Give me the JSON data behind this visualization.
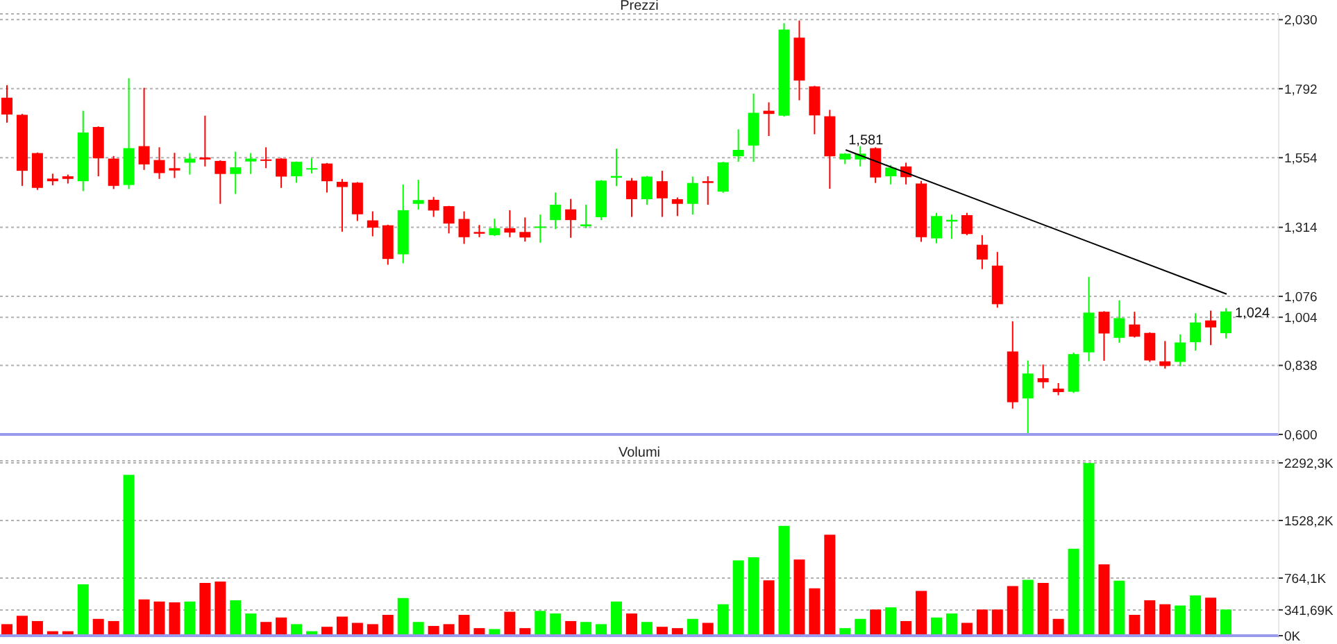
{
  "chart_data": [
    {
      "type": "candlestick",
      "title": "Prezzi",
      "tick_labels": "y",
      "grid": "y",
      "categories": [
        null,
        null,
        null,
        null,
        null,
        null,
        null,
        null,
        null,
        null,
        null,
        null,
        null,
        null,
        null,
        null,
        null,
        null,
        null,
        null,
        null,
        null,
        null,
        null,
        null,
        null,
        null,
        null,
        null,
        null,
        null,
        null,
        null,
        null,
        null,
        null,
        null,
        null,
        null,
        null,
        null,
        null,
        null,
        null,
        null,
        null,
        null,
        null,
        null,
        null,
        null,
        null,
        null,
        null,
        null,
        null,
        null,
        null,
        null,
        null,
        null,
        null,
        null,
        null,
        null,
        null,
        null,
        null,
        null,
        null,
        null,
        null,
        null,
        null,
        null,
        null,
        null,
        null,
        null,
        null,
        null
      ],
      "ohlc": [
        [
          1.761,
          1.804,
          1.675,
          1.703
        ],
        [
          1.702,
          1.705,
          1.457,
          1.509
        ],
        [
          1.57,
          1.572,
          1.443,
          1.45
        ],
        [
          1.482,
          1.499,
          1.459,
          1.473
        ],
        [
          1.49,
          1.496,
          1.465,
          1.481
        ],
        [
          1.473,
          1.716,
          1.439,
          1.641
        ],
        [
          1.66,
          1.662,
          1.49,
          1.552
        ],
        [
          1.551,
          1.56,
          1.446,
          1.457
        ],
        [
          1.46,
          1.828,
          1.446,
          1.587
        ],
        [
          1.594,
          1.795,
          1.512,
          1.531
        ],
        [
          1.546,
          1.59,
          1.481,
          1.501
        ],
        [
          1.518,
          1.571,
          1.484,
          1.51
        ],
        [
          1.537,
          1.57,
          1.496,
          1.551
        ],
        [
          1.555,
          1.699,
          1.524,
          1.548
        ],
        [
          1.543,
          1.545,
          1.395,
          1.498
        ],
        [
          1.498,
          1.575,
          1.429,
          1.521
        ],
        [
          1.541,
          1.57,
          1.498,
          1.551
        ],
        [
          1.548,
          1.59,
          1.518,
          1.545
        ],
        [
          1.551,
          1.553,
          1.45,
          1.489
        ],
        [
          1.49,
          1.541,
          1.468,
          1.54
        ],
        [
          1.514,
          1.552,
          1.5,
          1.518
        ],
        [
          1.534,
          1.536,
          1.434,
          1.473
        ],
        [
          1.471,
          1.481,
          1.299,
          1.453
        ],
        [
          1.468,
          1.47,
          1.336,
          1.359
        ],
        [
          1.338,
          1.369,
          1.283,
          1.313
        ],
        [
          1.321,
          1.323,
          1.185,
          1.205
        ],
        [
          1.221,
          1.462,
          1.19,
          1.373
        ],
        [
          1.395,
          1.478,
          1.375,
          1.408
        ],
        [
          1.409,
          1.419,
          1.35,
          1.372
        ],
        [
          1.387,
          1.388,
          1.293,
          1.327
        ],
        [
          1.343,
          1.369,
          1.257,
          1.28
        ],
        [
          1.298,
          1.322,
          1.28,
          1.292
        ],
        [
          1.287,
          1.344,
          1.284,
          1.311
        ],
        [
          1.311,
          1.373,
          1.28,
          1.296
        ],
        [
          1.298,
          1.348,
          1.265,
          1.279
        ],
        [
          1.312,
          1.358,
          1.261,
          1.317
        ],
        [
          1.339,
          1.434,
          1.308,
          1.392
        ],
        [
          1.376,
          1.412,
          1.278,
          1.339
        ],
        [
          1.318,
          1.392,
          1.311,
          1.324
        ],
        [
          1.349,
          1.477,
          1.339,
          1.475
        ],
        [
          1.485,
          1.585,
          1.456,
          1.491
        ],
        [
          1.475,
          1.484,
          1.35,
          1.411
        ],
        [
          1.411,
          1.491,
          1.392,
          1.489
        ],
        [
          1.473,
          1.509,
          1.35,
          1.414
        ],
        [
          1.411,
          1.417,
          1.353,
          1.395
        ],
        [
          1.395,
          1.489,
          1.358,
          1.467
        ],
        [
          1.473,
          1.49,
          1.392,
          1.467
        ],
        [
          1.437,
          1.54,
          1.433,
          1.538
        ],
        [
          1.559,
          1.652,
          1.54,
          1.581
        ],
        [
          1.596,
          1.775,
          1.54,
          1.709
        ],
        [
          1.716,
          1.745,
          1.629,
          1.705
        ],
        [
          1.699,
          2.018,
          1.696,
          1.996
        ],
        [
          1.968,
          2.027,
          1.752,
          1.82
        ],
        [
          1.8,
          1.802,
          1.635,
          1.7
        ],
        [
          1.697,
          1.719,
          1.447,
          1.559
        ],
        [
          1.548,
          1.57,
          1.532,
          1.568
        ],
        [
          1.548,
          1.594,
          1.524,
          1.568
        ],
        [
          1.587,
          1.59,
          1.467,
          1.486
        ],
        [
          1.49,
          1.529,
          1.462,
          1.52
        ],
        [
          1.524,
          1.537,
          1.462,
          1.487
        ],
        [
          1.465,
          1.474,
          1.264,
          1.28
        ],
        [
          1.276,
          1.364,
          1.259,
          1.353
        ],
        [
          1.334,
          1.358,
          1.274,
          1.34
        ],
        [
          1.356,
          1.364,
          1.287,
          1.291
        ],
        [
          1.254,
          1.287,
          1.17,
          1.203
        ],
        [
          1.182,
          1.229,
          1.037,
          1.049
        ],
        [
          0.886,
          0.99,
          0.689,
          0.711
        ],
        [
          0.724,
          0.855,
          0.605,
          0.81
        ],
        [
          0.794,
          0.841,
          0.759,
          0.78
        ],
        [
          0.758,
          0.777,
          0.735,
          0.746
        ],
        [
          0.747,
          0.882,
          0.743,
          0.877
        ],
        [
          0.883,
          1.143,
          0.852,
          1.02
        ],
        [
          1.023,
          1.025,
          0.854,
          0.948
        ],
        [
          0.933,
          1.062,
          0.916,
          1.001
        ],
        [
          0.979,
          1.023,
          0.934,
          0.937
        ],
        [
          0.95,
          0.952,
          0.85,
          0.855
        ],
        [
          0.852,
          0.922,
          0.827,
          0.836
        ],
        [
          0.85,
          0.945,
          0.835,
          0.917
        ],
        [
          0.918,
          1.018,
          0.889,
          0.986
        ],
        [
          0.993,
          1.027,
          0.908,
          0.969
        ],
        [
          0.949,
          1.035,
          0.931,
          1.024
        ]
      ],
      "colors": [
        "#ff0000",
        "#ff0000",
        "#ff0000",
        "#ff0000",
        "#ff0000",
        "#00ff00",
        "#ff0000",
        "#ff0000",
        "#00ff00",
        "#ff0000",
        "#ff0000",
        "#ff0000",
        "#00ff00",
        "#ff0000",
        "#ff0000",
        "#00ff00",
        "#00ff00",
        "#ff0000",
        "#ff0000",
        "#00ff00",
        "#00ff00",
        "#ff0000",
        "#ff0000",
        "#ff0000",
        "#ff0000",
        "#ff0000",
        "#00ff00",
        "#00ff00",
        "#ff0000",
        "#ff0000",
        "#ff0000",
        "#ff0000",
        "#00ff00",
        "#ff0000",
        "#ff0000",
        "#00ff00",
        "#00ff00",
        "#ff0000",
        "#00ff00",
        "#00ff00",
        "#00ff00",
        "#ff0000",
        "#00ff00",
        "#ff0000",
        "#ff0000",
        "#00ff00",
        "#ff0000",
        "#00ff00",
        "#00ff00",
        "#00ff00",
        "#ff0000",
        "#00ff00",
        "#ff0000",
        "#ff0000",
        "#ff0000",
        "#00ff00",
        "#00ff00",
        "#ff0000",
        "#00ff00",
        "#ff0000",
        "#ff0000",
        "#00ff00",
        "#00ff00",
        "#ff0000",
        "#ff0000",
        "#ff0000",
        "#ff0000",
        "#00ff00",
        "#ff0000",
        "#ff0000",
        "#00ff00",
        "#00ff00",
        "#ff0000",
        "#00ff00",
        "#ff0000",
        "#ff0000",
        "#ff0000",
        "#00ff00",
        "#00ff00",
        "#ff0000",
        "#00ff00"
      ],
      "value_labels": [
        null,
        null,
        null,
        null,
        null,
        null,
        null,
        null,
        null,
        null,
        null,
        null,
        null,
        null,
        null,
        null,
        null,
        null,
        null,
        null,
        null,
        null,
        null,
        null,
        null,
        null,
        null,
        null,
        null,
        null,
        null,
        null,
        null,
        null,
        null,
        null,
        null,
        null,
        null,
        null,
        null,
        null,
        null,
        null,
        null,
        null,
        null,
        null,
        null,
        null,
        null,
        null,
        null,
        null,
        null,
        null,
        null,
        null,
        null,
        null,
        null,
        null,
        null,
        null,
        null,
        null,
        null,
        null,
        null,
        null,
        null,
        null,
        null,
        null,
        null,
        null,
        null,
        null,
        null,
        null,
        "1,024"
      ],
      "series": [
        {
          "type": "line",
          "color": "#000000",
          "values": [
            null,
            null,
            null,
            null,
            null,
            null,
            null,
            null,
            null,
            null,
            null,
            null,
            null,
            null,
            null,
            null,
            null,
            null,
            null,
            null,
            null,
            null,
            null,
            null,
            null,
            null,
            null,
            null,
            null,
            null,
            null,
            null,
            null,
            null,
            null,
            null,
            null,
            null,
            null,
            null,
            null,
            null,
            null,
            null,
            null,
            null,
            null,
            null,
            null,
            null,
            null,
            null,
            null,
            null,
            null,
            1.581,
            null,
            null,
            null,
            null,
            null,
            null,
            null,
            null,
            null,
            null,
            null,
            null,
            null,
            null,
            null,
            null,
            null,
            null,
            null,
            null,
            null,
            null,
            null,
            null,
            1.084
          ],
          "value_labels": [
            null,
            null,
            null,
            null,
            null,
            null,
            null,
            null,
            null,
            null,
            null,
            null,
            null,
            null,
            null,
            null,
            null,
            null,
            null,
            null,
            null,
            null,
            null,
            null,
            null,
            null,
            null,
            null,
            null,
            null,
            null,
            null,
            null,
            null,
            null,
            null,
            null,
            null,
            null,
            null,
            null,
            null,
            null,
            null,
            null,
            null,
            null,
            null,
            null,
            null,
            null,
            null,
            null,
            null,
            null,
            "1,581",
            null,
            null,
            null,
            null,
            null,
            null,
            null,
            null,
            null,
            null,
            null,
            null,
            null,
            null,
            null,
            null,
            null,
            null,
            null,
            null,
            null,
            null,
            null,
            null,
            null
          ]
        }
      ],
      "ylim": [
        0.6,
        2.05
      ],
      "yticks": [
        {
          "value": 0.6,
          "label": "0,600"
        },
        {
          "value": 0.838,
          "label": "0,838"
        },
        {
          "value": 1.004,
          "label": "1,004"
        },
        {
          "value": 1.076,
          "label": "1,076"
        },
        {
          "value": 1.314,
          "label": "1,314"
        },
        {
          "value": 1.554,
          "label": "1,554"
        },
        {
          "value": 1.792,
          "label": "1,792"
        },
        {
          "value": 2.03,
          "label": "2,030"
        }
      ]
    },
    {
      "type": "bar",
      "title": "Volumi",
      "tick_labels": "y",
      "grid": "y",
      "categories": [
        null,
        null,
        null,
        null,
        null,
        null,
        null,
        null,
        null,
        null,
        null,
        null,
        null,
        null,
        null,
        null,
        null,
        null,
        null,
        null,
        null,
        null,
        null,
        null,
        null,
        null,
        null,
        null,
        null,
        null,
        null,
        null,
        null,
        null,
        null,
        null,
        null,
        null,
        null,
        null,
        null,
        null,
        null,
        null,
        null,
        null,
        null,
        null,
        null,
        null,
        null,
        null,
        null,
        null,
        null,
        null,
        null,
        null,
        null,
        null,
        null,
        null,
        null,
        null,
        null,
        null,
        null,
        null,
        null,
        null,
        null,
        null,
        null,
        null,
        null,
        null,
        null,
        null,
        null,
        null,
        null
      ],
      "values": [
        153,
        264,
        194,
        59,
        59,
        682,
        223,
        194,
        2133,
        482,
        453,
        441,
        453,
        699,
        717,
        470,
        294,
        182,
        241,
        153,
        59,
        118,
        253,
        170,
        153,
        276,
        500,
        182,
        129,
        153,
        276,
        100,
        88,
        317,
        100,
        329,
        294,
        194,
        182,
        153,
        453,
        294,
        182,
        118,
        100,
        223,
        170,
        417,
        999,
        1040,
        735,
        1457,
        1011,
        629,
        1340,
        100,
        223,
        347,
        376,
        194,
        594,
        241,
        294,
        170,
        347,
        347,
        658,
        740,
        699,
        223,
        1152,
        2290,
        946,
        729,
        276,
        470,
        417,
        400,
        535,
        505,
        347
      ],
      "colors": [
        "#ff0000",
        "#ff0000",
        "#ff0000",
        "#ff0000",
        "#ff0000",
        "#00ff00",
        "#ff0000",
        "#ff0000",
        "#00ff00",
        "#ff0000",
        "#ff0000",
        "#ff0000",
        "#00ff00",
        "#ff0000",
        "#ff0000",
        "#00ff00",
        "#00ff00",
        "#ff0000",
        "#ff0000",
        "#00ff00",
        "#00ff00",
        "#ff0000",
        "#ff0000",
        "#ff0000",
        "#ff0000",
        "#ff0000",
        "#00ff00",
        "#00ff00",
        "#ff0000",
        "#ff0000",
        "#ff0000",
        "#ff0000",
        "#00ff00",
        "#ff0000",
        "#ff0000",
        "#00ff00",
        "#00ff00",
        "#ff0000",
        "#00ff00",
        "#00ff00",
        "#00ff00",
        "#ff0000",
        "#00ff00",
        "#ff0000",
        "#ff0000",
        "#00ff00",
        "#ff0000",
        "#00ff00",
        "#00ff00",
        "#00ff00",
        "#ff0000",
        "#00ff00",
        "#ff0000",
        "#ff0000",
        "#ff0000",
        "#00ff00",
        "#00ff00",
        "#ff0000",
        "#00ff00",
        "#ff0000",
        "#ff0000",
        "#00ff00",
        "#00ff00",
        "#ff0000",
        "#ff0000",
        "#ff0000",
        "#ff0000",
        "#00ff00",
        "#ff0000",
        "#ff0000",
        "#00ff00",
        "#00ff00",
        "#ff0000",
        "#00ff00",
        "#ff0000",
        "#ff0000",
        "#ff0000",
        "#00ff00",
        "#00ff00",
        "#ff0000",
        "#00ff00"
      ],
      "ylim": [
        0,
        2320
      ],
      "yticks": [
        {
          "value": 0,
          "label": "0K"
        },
        {
          "value": 341.69,
          "label": "341,69K"
        },
        {
          "value": 764.1,
          "label": "764,1K"
        },
        {
          "value": 1528.2,
          "label": "1528,2K"
        },
        {
          "value": 2292.3,
          "label": "2292,3K"
        }
      ]
    }
  ]
}
